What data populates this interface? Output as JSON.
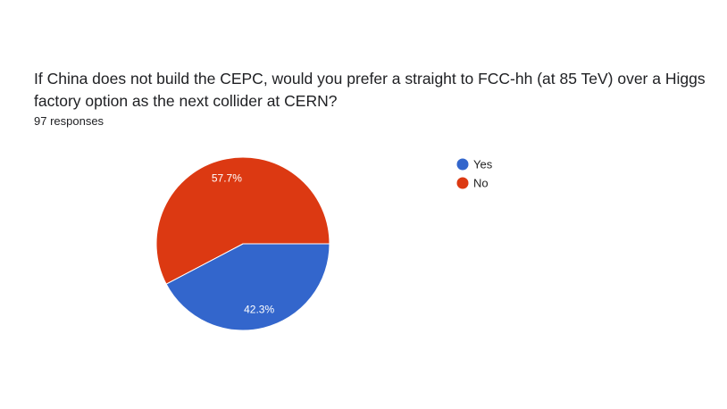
{
  "question": "If China does not build the CEPC, would you prefer a straight to FCC-hh (at 85 TeV) over a Higgs factory option as the next collider at CERN?",
  "response_count": "97 responses",
  "chart_data": {
    "type": "pie",
    "categories": [
      "Yes",
      "No"
    ],
    "values": [
      42.3,
      57.7
    ],
    "labels": [
      "42.3%",
      "57.7%"
    ],
    "colors": [
      "#3366cc",
      "#dc3912"
    ],
    "legend_position": "right"
  }
}
